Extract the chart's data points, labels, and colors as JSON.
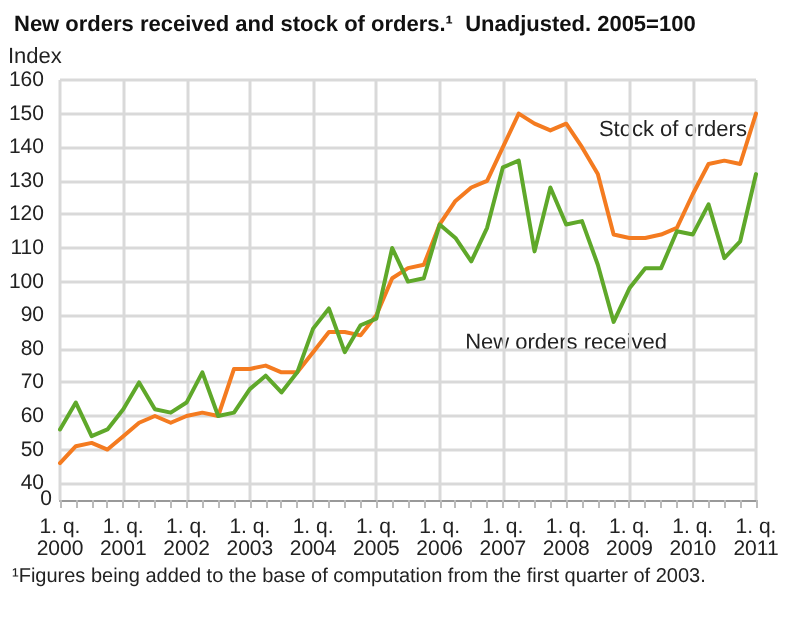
{
  "chart_data": {
    "type": "line",
    "title": "New orders received and stock of orders.¹  Unadjusted. 2005=100",
    "ylabel": "Index",
    "categories": [
      "1. q. 2000",
      null,
      null,
      null,
      "1. q. 2001",
      null,
      null,
      null,
      "1. q. 2002",
      null,
      null,
      null,
      "1. q. 2003",
      null,
      null,
      null,
      "1. q. 2004",
      null,
      null,
      null,
      "1. q. 2005",
      null,
      null,
      null,
      "1. q. 2006",
      null,
      null,
      null,
      "1. q. 2007",
      null,
      null,
      null,
      "1. q. 2008",
      null,
      null,
      null,
      "1. q. 2009",
      null,
      null,
      null,
      "1. q. 2010",
      null,
      null,
      null,
      "1. q. 2011"
    ],
    "series": [
      {
        "name": "Stock of orders",
        "color": "#f47b20",
        "values": [
          46,
          51,
          52,
          50,
          54,
          58,
          60,
          58,
          60,
          61,
          60,
          74,
          74,
          75,
          73,
          73,
          79,
          85,
          85,
          84,
          90,
          101,
          104,
          105,
          117,
          124,
          128,
          130,
          140,
          150,
          147,
          145,
          147,
          140,
          132,
          114,
          113,
          113,
          114,
          116,
          126,
          135,
          136,
          135,
          150
        ]
      },
      {
        "name": "New orders received",
        "color": "#5fa82a",
        "values": [
          56,
          64,
          54,
          56,
          62,
          70,
          62,
          61,
          64,
          73,
          60,
          61,
          68,
          72,
          67,
          73,
          86,
          92,
          79,
          87,
          89,
          110,
          100,
          101,
          117,
          113,
          106,
          116,
          134,
          136,
          109,
          128,
          117,
          118,
          105,
          88,
          98,
          104,
          104,
          115,
          114,
          123,
          107,
          112,
          132
        ]
      }
    ],
    "ylim": [
      35,
      160
    ],
    "yticks": [
      40,
      50,
      60,
      70,
      80,
      90,
      100,
      110,
      120,
      130,
      140,
      150,
      160
    ],
    "grid": true,
    "legend": false,
    "annotations": [
      "0",
      "¹Figures being added to the base of computation from the first quarter of 2003."
    ]
  }
}
